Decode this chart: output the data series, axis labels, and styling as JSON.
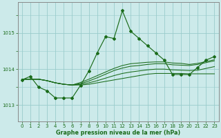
{
  "xlabel": "Graphe pression niveau de la mer (hPa)",
  "bg_color": "#cceaea",
  "grid_color": "#99cccc",
  "line_color": "#1a6b1a",
  "xlim": [
    -0.5,
    23.5
  ],
  "ylim": [
    1012.55,
    1015.85
  ],
  "yticks": [
    1013,
    1014,
    1015
  ],
  "xticks": [
    0,
    1,
    2,
    3,
    4,
    5,
    6,
    7,
    8,
    9,
    10,
    11,
    12,
    13,
    14,
    15,
    16,
    17,
    18,
    19,
    20,
    21,
    22,
    23
  ],
  "main_line_x": [
    0,
    1,
    2,
    3,
    4,
    5,
    6,
    7,
    8,
    9,
    10,
    11,
    12,
    13,
    14,
    15,
    16,
    17,
    18,
    19,
    20,
    21,
    22,
    23
  ],
  "main_line_y": [
    1013.7,
    1013.8,
    1013.5,
    1013.4,
    1013.2,
    1013.2,
    1013.2,
    1013.55,
    1013.95,
    1014.45,
    1014.9,
    1014.85,
    1015.62,
    1015.05,
    1014.85,
    1014.65,
    1014.45,
    1014.25,
    1013.85,
    1013.85,
    1013.85,
    1014.05,
    1014.25,
    1014.35
  ],
  "band_lines": [
    [
      1013.72,
      1013.72,
      1013.72,
      1013.68,
      1013.62,
      1013.58,
      1013.56,
      1013.56,
      1013.58,
      1013.62,
      1013.66,
      1013.7,
      1013.74,
      1013.78,
      1013.82,
      1013.86,
      1013.88,
      1013.88,
      1013.88,
      1013.88,
      1013.87,
      1013.87,
      1013.87,
      1013.87
    ],
    [
      1013.72,
      1013.72,
      1013.72,
      1013.68,
      1013.62,
      1013.58,
      1013.56,
      1013.58,
      1013.62,
      1013.68,
      1013.75,
      1013.82,
      1013.88,
      1013.92,
      1013.95,
      1013.98,
      1014.0,
      1014.0,
      1013.98,
      1013.97,
      1013.96,
      1013.97,
      1014.02,
      1014.07
    ],
    [
      1013.72,
      1013.72,
      1013.72,
      1013.68,
      1013.62,
      1013.58,
      1013.56,
      1013.6,
      1013.67,
      1013.76,
      1013.86,
      1013.96,
      1014.03,
      1014.08,
      1014.1,
      1014.13,
      1014.15,
      1014.15,
      1014.12,
      1014.11,
      1014.1,
      1014.13,
      1014.18,
      1014.23
    ],
    [
      1013.72,
      1013.72,
      1013.72,
      1013.68,
      1013.62,
      1013.58,
      1013.56,
      1013.63,
      1013.72,
      1013.82,
      1013.92,
      1014.02,
      1014.1,
      1014.15,
      1014.17,
      1014.19,
      1014.2,
      1014.2,
      1014.17,
      1014.16,
      1014.13,
      1014.16,
      1014.21,
      1014.26
    ]
  ]
}
